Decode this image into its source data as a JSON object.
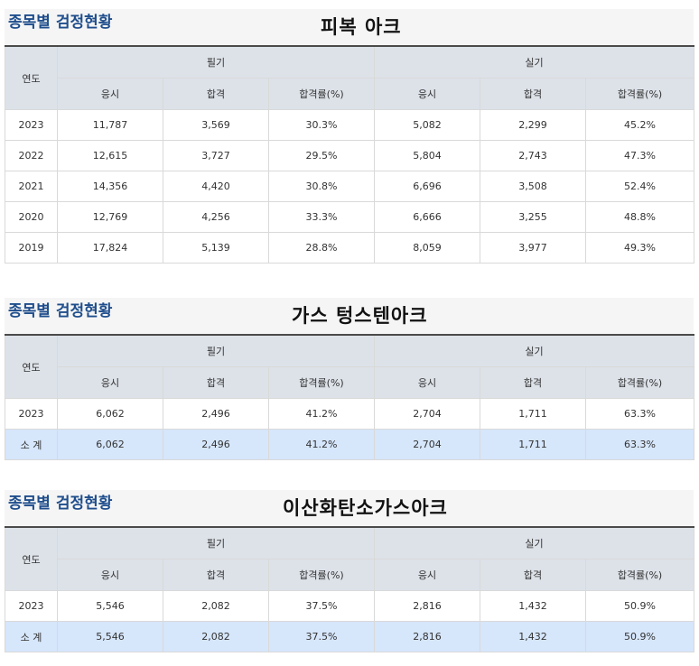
{
  "sections": [
    {
      "label": "종목별 검정현황",
      "title": "피복 아크",
      "headers": {
        "year": "연도",
        "written": "필기",
        "practical": "실기",
        "applicants": "응시",
        "passed": "합격",
        "rate": "합격률(%)"
      },
      "rows": [
        {
          "year": "2023",
          "w_app": "11,787",
          "w_pass": "3,569",
          "w_rate": "30.3%",
          "p_app": "5,082",
          "p_pass": "2,299",
          "p_rate": "45.2%"
        },
        {
          "year": "2022",
          "w_app": "12,615",
          "w_pass": "3,727",
          "w_rate": "29.5%",
          "p_app": "5,804",
          "p_pass": "2,743",
          "p_rate": "47.3%"
        },
        {
          "year": "2021",
          "w_app": "14,356",
          "w_pass": "4,420",
          "w_rate": "30.8%",
          "p_app": "6,696",
          "p_pass": "3,508",
          "p_rate": "52.4%"
        },
        {
          "year": "2020",
          "w_app": "12,769",
          "w_pass": "4,256",
          "w_rate": "33.3%",
          "p_app": "6,666",
          "p_pass": "3,255",
          "p_rate": "48.8%"
        },
        {
          "year": "2019",
          "w_app": "17,824",
          "w_pass": "5,139",
          "w_rate": "28.8%",
          "p_app": "8,059",
          "p_pass": "3,977",
          "p_rate": "49.3%"
        }
      ]
    },
    {
      "label": "종목별 검정현황",
      "title": "가스 텅스텐아크",
      "headers": {
        "year": "연도",
        "written": "필기",
        "practical": "실기",
        "applicants": "응시",
        "passed": "합격",
        "rate": "합격률(%)"
      },
      "rows": [
        {
          "year": "2023",
          "w_app": "6,062",
          "w_pass": "2,496",
          "w_rate": "41.2%",
          "p_app": "2,704",
          "p_pass": "1,711",
          "p_rate": "63.3%"
        }
      ],
      "subtotal": {
        "year": "소 계",
        "w_app": "6,062",
        "w_pass": "2,496",
        "w_rate": "41.2%",
        "p_app": "2,704",
        "p_pass": "1,711",
        "p_rate": "63.3%"
      }
    },
    {
      "label": "종목별 검정현황",
      "title": "이산화탄소가스아크",
      "headers": {
        "year": "연도",
        "written": "필기",
        "practical": "실기",
        "applicants": "응시",
        "passed": "합격",
        "rate": "합격률(%)"
      },
      "rows": [
        {
          "year": "2023",
          "w_app": "5,546",
          "w_pass": "2,082",
          "w_rate": "37.5%",
          "p_app": "2,816",
          "p_pass": "1,432",
          "p_rate": "50.9%"
        }
      ],
      "subtotal": {
        "year": "소 계",
        "w_app": "5,546",
        "w_pass": "2,082",
        "w_rate": "37.5%",
        "p_app": "2,816",
        "p_pass": "1,432",
        "p_rate": "50.9%"
      }
    }
  ]
}
